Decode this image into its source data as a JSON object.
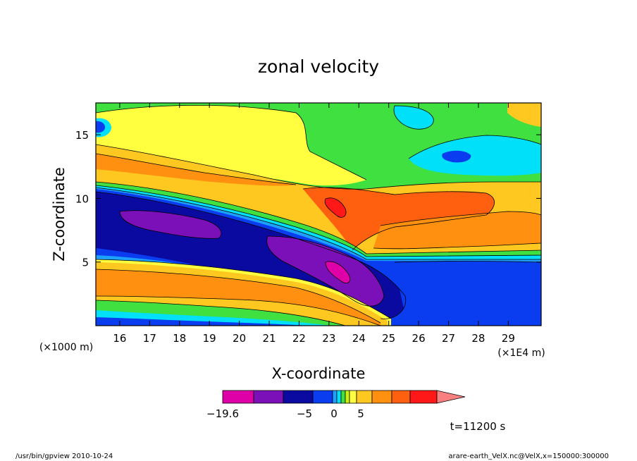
{
  "chart_data": {
    "type": "heatmap",
    "title": "zonal velocity",
    "xlabel": "X-coordinate",
    "ylabel": "Z-coordinate",
    "x_unit_label": "(×1E4 m)",
    "y_unit_label": "(×1000 m)",
    "x_range": [
      15.2,
      30.1
    ],
    "y_range": [
      0,
      17.5
    ],
    "x_ticks": [
      16,
      17,
      18,
      19,
      20,
      21,
      22,
      23,
      24,
      25,
      26,
      27,
      28,
      29
    ],
    "y_ticks": [
      5,
      10,
      15
    ],
    "time_label": "t=11200 s",
    "colorbar": {
      "colors": [
        "#e000a8",
        "#7c10b8",
        "#0a0aa0",
        "#0a3cf0",
        "#1ea0ff",
        "#00e0f8",
        "#40e040",
        "#c8f010",
        "#ffff40",
        "#ffc820",
        "#ff9010",
        "#ff6010",
        "#ff1818",
        "#f88080"
      ],
      "tick_labels": [
        "−19.6",
        "−5",
        "0",
        "5"
      ]
    },
    "field_fraction_along_x": [
      0,
      0.15,
      0.3,
      0.45,
      0.55,
      0.62,
      0.7,
      0.78,
      0.85,
      0.9,
      0.95,
      1.0
    ],
    "field_layers": [
      {
        "name": "low-level orange jet",
        "color": "#ff9010"
      },
      {
        "name": "mid-level easterly core",
        "color": "#0a0aa0"
      },
      {
        "name": "strong core",
        "color": "#7c10b8"
      },
      {
        "name": "max core",
        "color": "#e000a8"
      },
      {
        "name": "upper westerly",
        "color": "#ff6010"
      },
      {
        "name": "upper yellow",
        "color": "#ffff40"
      },
      {
        "name": "stratosphere green",
        "color": "#40e040"
      },
      {
        "name": "cyan patch",
        "color": "#00e0f8"
      }
    ]
  },
  "footer": {
    "left": "/usr/bin/gpview  2010-10-24",
    "right": "arare-earth_VelX.nc@VelX,x=150000:300000"
  },
  "colors": {
    "frame": "#000000",
    "background": "#ffffff"
  }
}
